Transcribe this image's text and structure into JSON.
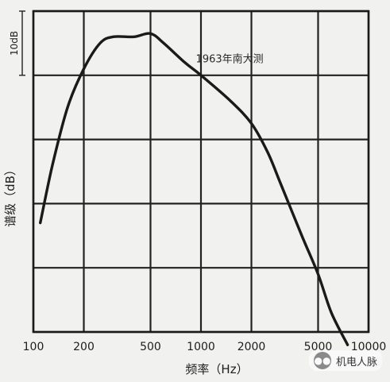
{
  "chart_data": {
    "type": "line",
    "title": "",
    "xlabel": "频率（Hz）",
    "ylabel": "谱级（dB）",
    "x_scale": "log",
    "xlim": [
      100,
      10000
    ],
    "x_ticks": [
      100,
      200,
      500,
      1000,
      2000,
      5000,
      10000
    ],
    "x_tick_labels": [
      "100",
      "200",
      "500",
      "1000",
      "2000",
      "5000",
      "10000"
    ],
    "ylim": [
      0,
      50
    ],
    "grid": true,
    "scale_bar_label": "10dB",
    "annotation": "1963年南大测",
    "series": [
      {
        "name": "",
        "x": [
          110,
          130,
          160,
          200,
          250,
          300,
          400,
          500,
          600,
          800,
          1000,
          1500,
          2000,
          2500,
          3000,
          4000,
          5000,
          6000,
          7500
        ],
        "y": [
          17,
          26,
          35,
          41,
          45,
          46,
          46,
          46.5,
          45,
          42,
          40,
          36,
          32.5,
          28,
          23,
          15,
          9,
          3,
          -2
        ]
      }
    ]
  },
  "watermark": {
    "icon": "wechat-icon",
    "text": "机电人脉"
  }
}
